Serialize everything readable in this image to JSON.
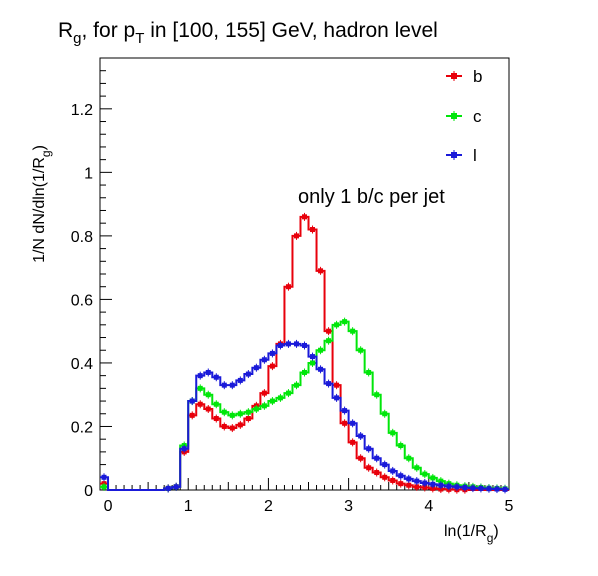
{
  "chart_data": {
    "type": "step",
    "title_parts": {
      "r": "R",
      "g_sub": "g",
      "for_p": ", for p",
      "t_sub": "T",
      "rest": " in [100, 155] GeV, hadron level"
    },
    "annotation": "only 1 b/c per jet",
    "xlabel_parts": {
      "main": "ln(1/R",
      "sub": "g",
      "close": ")"
    },
    "ylabel_parts": {
      "main": "1/N dN/dln(1/R",
      "sub": "g",
      "close": ")"
    },
    "xlim": [
      -0.1,
      5.0
    ],
    "ylim": [
      0,
      1.36
    ],
    "x_ticks": [
      "0",
      "1",
      "2",
      "3",
      "4",
      "5"
    ],
    "y_ticks": [
      "0",
      "0.2",
      "0.4",
      "0.6",
      "0.8",
      "1",
      "1.2"
    ],
    "x_tick_values": [
      0,
      1,
      2,
      3,
      4,
      5
    ],
    "y_tick_values": [
      0,
      0.2,
      0.4,
      0.6,
      0.8,
      1.0,
      1.2
    ],
    "bin_width": 0.1,
    "bin_start": -0.1,
    "legend_position": "top-right",
    "series": [
      {
        "name": "b",
        "color": "#e8000b",
        "values": [
          0.02,
          0,
          0,
          0,
          0,
          0,
          0,
          0,
          0.005,
          0.01,
          0.12,
          0.235,
          0.27,
          0.255,
          0.225,
          0.2,
          0.195,
          0.205,
          0.225,
          0.265,
          0.305,
          0.39,
          0.46,
          0.64,
          0.8,
          0.86,
          0.82,
          0.69,
          0.5,
          0.33,
          0.21,
          0.15,
          0.1,
          0.07,
          0.055,
          0.04,
          0.03,
          0.02,
          0.015,
          0.01,
          0.008,
          0.005,
          0.003,
          0.002,
          0.001,
          0.001,
          0.0,
          0.0,
          0.0,
          0.0,
          0.0
        ]
      },
      {
        "name": "c",
        "color": "#00e60a",
        "values": [
          0.01,
          0,
          0,
          0,
          0,
          0,
          0,
          0,
          0.005,
          0.01,
          0.14,
          0.28,
          0.32,
          0.3,
          0.27,
          0.245,
          0.235,
          0.24,
          0.245,
          0.255,
          0.265,
          0.28,
          0.29,
          0.305,
          0.33,
          0.37,
          0.4,
          0.44,
          0.47,
          0.52,
          0.53,
          0.5,
          0.44,
          0.37,
          0.3,
          0.24,
          0.18,
          0.14,
          0.1,
          0.07,
          0.05,
          0.038,
          0.028,
          0.02,
          0.015,
          0.012,
          0.01,
          0.008,
          0.006,
          0.005,
          0.004
        ]
      },
      {
        "name": "l",
        "color": "#1a1ad9",
        "values": [
          0.04,
          0,
          0,
          0,
          0,
          0,
          0,
          0,
          0.005,
          0.01,
          0.13,
          0.28,
          0.36,
          0.37,
          0.355,
          0.33,
          0.33,
          0.345,
          0.365,
          0.385,
          0.41,
          0.43,
          0.455,
          0.46,
          0.46,
          0.455,
          0.42,
          0.38,
          0.335,
          0.29,
          0.25,
          0.21,
          0.17,
          0.13,
          0.1,
          0.08,
          0.06,
          0.045,
          0.035,
          0.028,
          0.022,
          0.018,
          0.015,
          0.012,
          0.01,
          0.008,
          0.006,
          0.005,
          0.004,
          0.003,
          0.002
        ]
      }
    ]
  }
}
